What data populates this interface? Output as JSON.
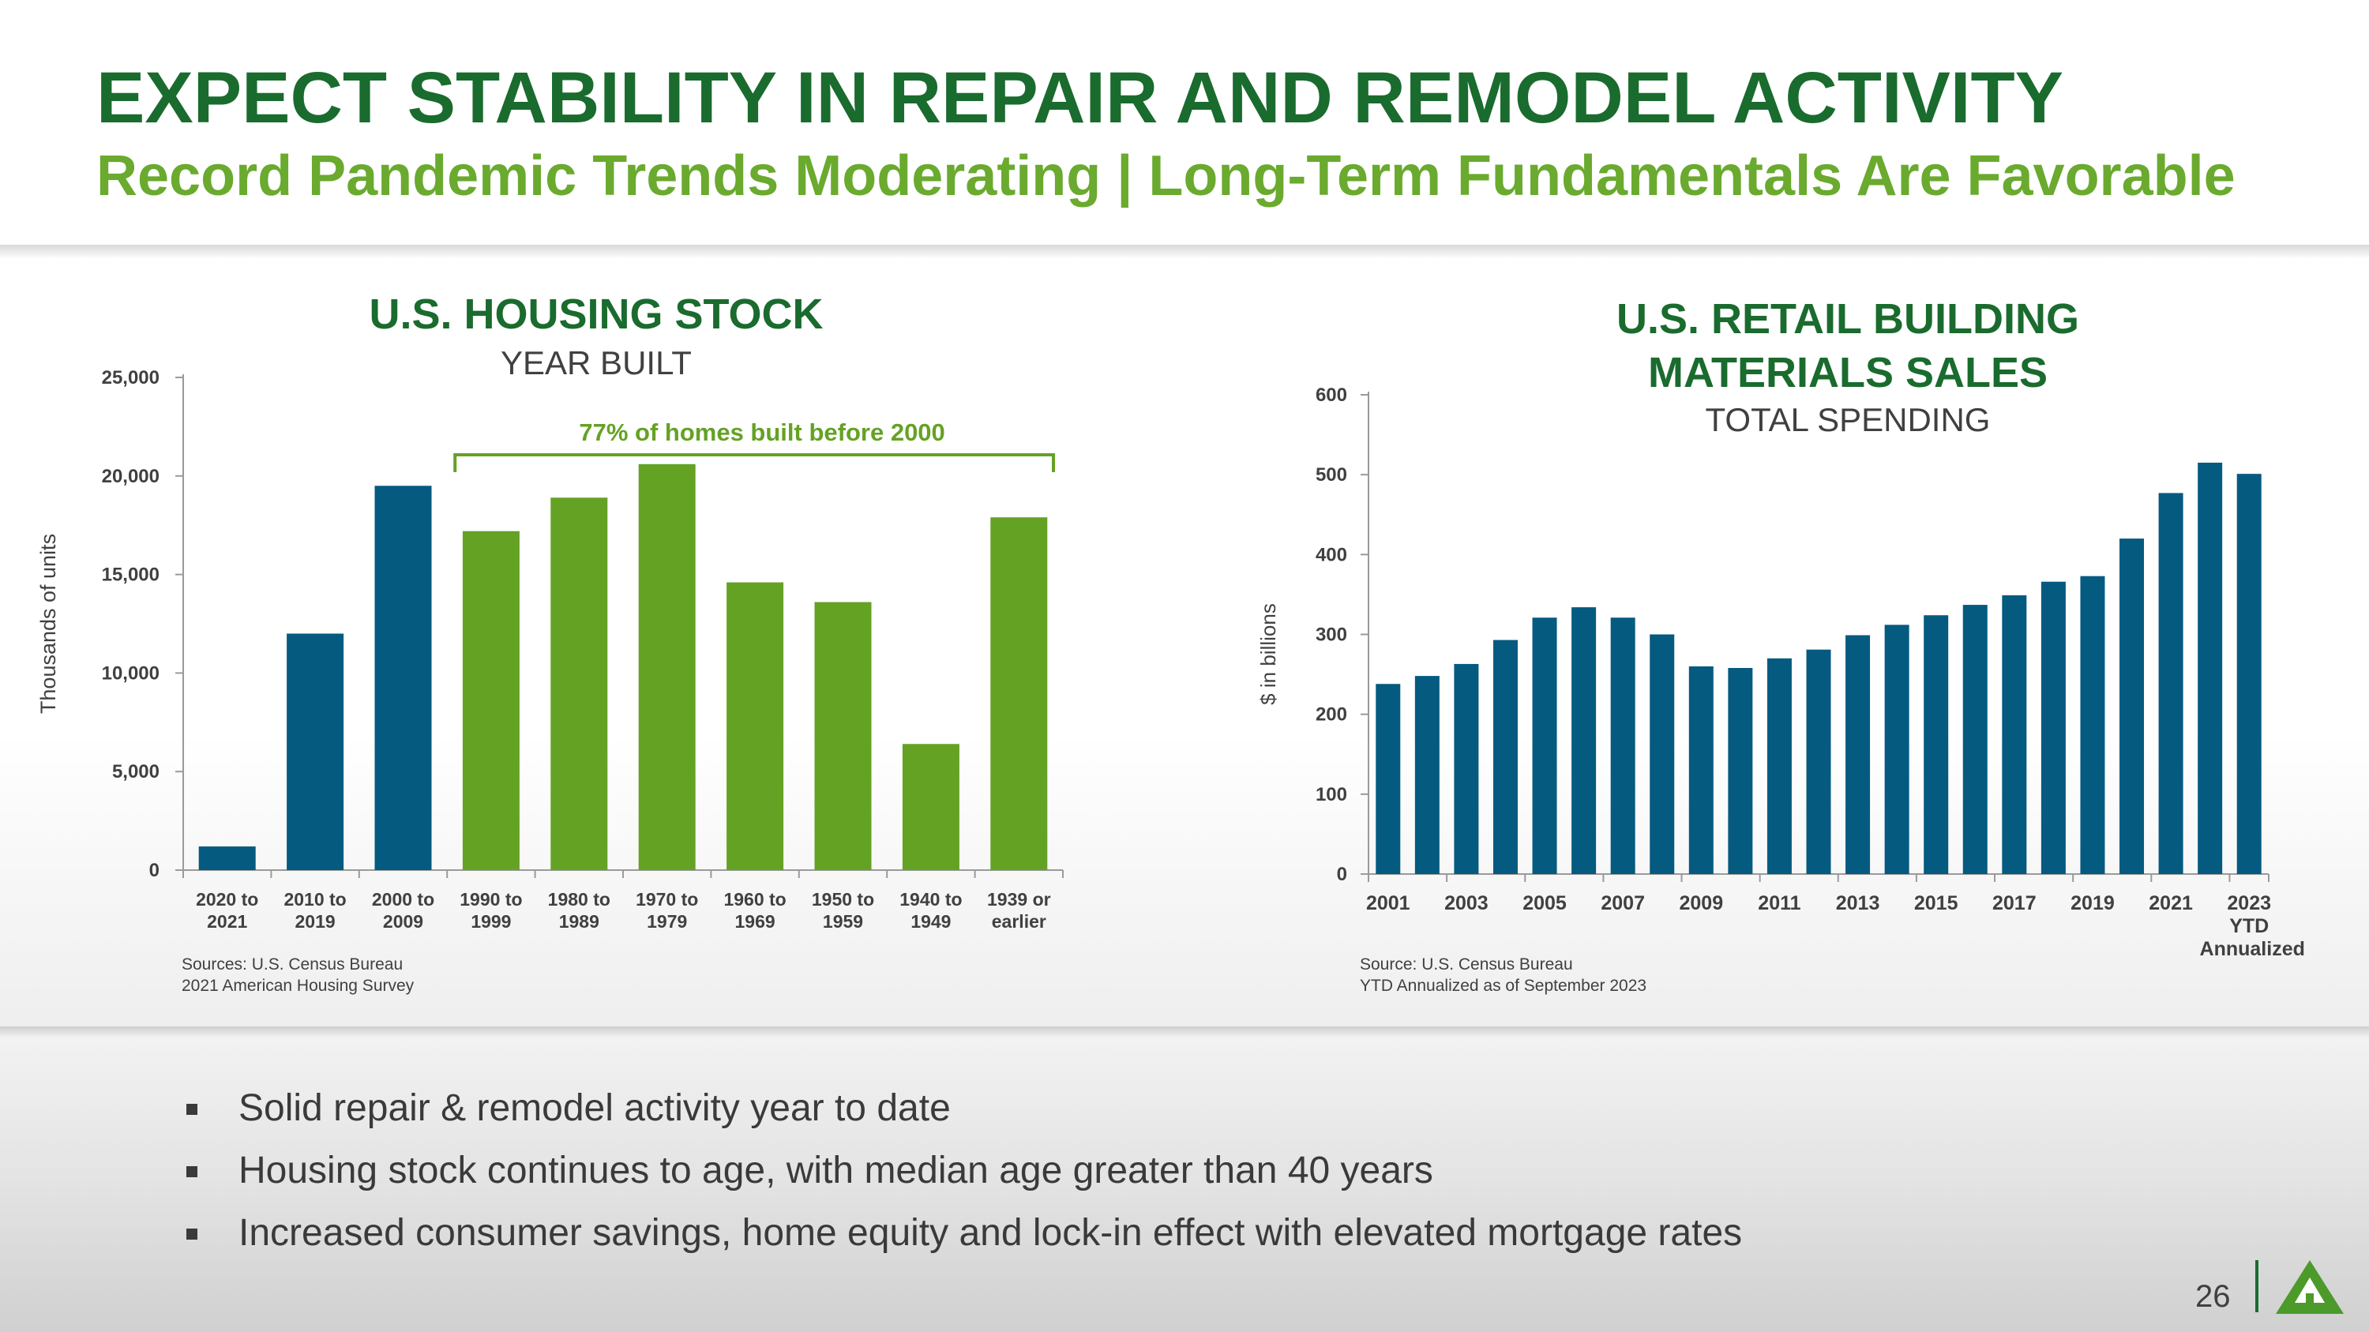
{
  "header": {
    "title": "EXPECT STABILITY IN REPAIR AND REMODEL ACTIVITY",
    "subtitle": "Record Pandemic Trends Moderating | Long-Term Fundamentals Are Favorable"
  },
  "left_chart": {
    "heading": "U.S. HOUSING STOCK",
    "subheading": "YEAR BUILT",
    "sources": [
      "Sources: U.S. Census Bureau",
      "2021 American Housing Survey"
    ]
  },
  "right_chart": {
    "heading_line1": "U.S. RETAIL BUILDING",
    "heading_line2": "MATERIALS SALES",
    "subheading": "TOTAL SPENDING",
    "sources": [
      "Source: U.S. Census Bureau",
      "YTD Annualized as of September 2023"
    ]
  },
  "bullets": [
    "Solid repair & remodel activity year to date",
    "Housing stock continues to age, with median age greater than 40 years",
    "Increased consumer savings, home equity and lock-in effect with elevated mortgage rates"
  ],
  "page_number": "26",
  "colors": {
    "navy": "#055a80",
    "green": "#64a224",
    "title_green": "#1a6b2e",
    "subtitle_green": "#6aaa2e"
  },
  "logo": {
    "icon": "company-logo-icon"
  },
  "chart_data": [
    {
      "type": "bar",
      "title": "U.S. HOUSING STOCK",
      "subtitle": "YEAR BUILT",
      "xlabel": "",
      "ylabel": "Thousands of units",
      "ylim": [
        0,
        25000
      ],
      "yticks": [
        0,
        5000,
        10000,
        15000,
        20000,
        25000
      ],
      "ytick_labels": [
        "0",
        "5,000",
        "10,000",
        "15,000",
        "20,000",
        "25,000"
      ],
      "categories": [
        [
          "2020 to",
          "2021"
        ],
        [
          "2010 to",
          "2019"
        ],
        [
          "2000 to",
          "2009"
        ],
        [
          "1990 to",
          "1999"
        ],
        [
          "1980 to",
          "1989"
        ],
        [
          "1970 to",
          "1979"
        ],
        [
          "1960 to",
          "1969"
        ],
        [
          "1950 to",
          "1959"
        ],
        [
          "1940 to",
          "1949"
        ],
        [
          "1939 or",
          "earlier"
        ]
      ],
      "values": [
        1200,
        12000,
        19500,
        17200,
        18900,
        20600,
        14600,
        13600,
        6400,
        17900
      ],
      "highlight_from": 3,
      "annotation": "77% of homes built before 2000"
    },
    {
      "type": "bar",
      "title": "U.S. RETAIL BUILDING MATERIALS SALES",
      "subtitle": "TOTAL SPENDING",
      "xlabel": "",
      "ylabel": "$ in billions",
      "ylim": [
        0,
        600
      ],
      "yticks": [
        0,
        100,
        200,
        300,
        400,
        500,
        600
      ],
      "ytick_labels": [
        "0",
        "100",
        "200",
        "300",
        "400",
        "500",
        "600"
      ],
      "x": [
        2001,
        2002,
        2003,
        2004,
        2005,
        2006,
        2007,
        2008,
        2009,
        2010,
        2011,
        2012,
        2013,
        2014,
        2015,
        2016,
        2017,
        2018,
        2019,
        2020,
        2021,
        2022,
        2023
      ],
      "xtick_labels": [
        "2001",
        "2003",
        "2005",
        "2007",
        "2009",
        "2011",
        "2013",
        "2015",
        "2017",
        "2019",
        "2021",
        "2023"
      ],
      "last_label_extra": [
        "YTD",
        "Annualized"
      ],
      "values": [
        238,
        248,
        263,
        293,
        321,
        334,
        321,
        300,
        260,
        258,
        270,
        281,
        299,
        312,
        324,
        337,
        349,
        366,
        373,
        420,
        477,
        515,
        501
      ]
    }
  ]
}
